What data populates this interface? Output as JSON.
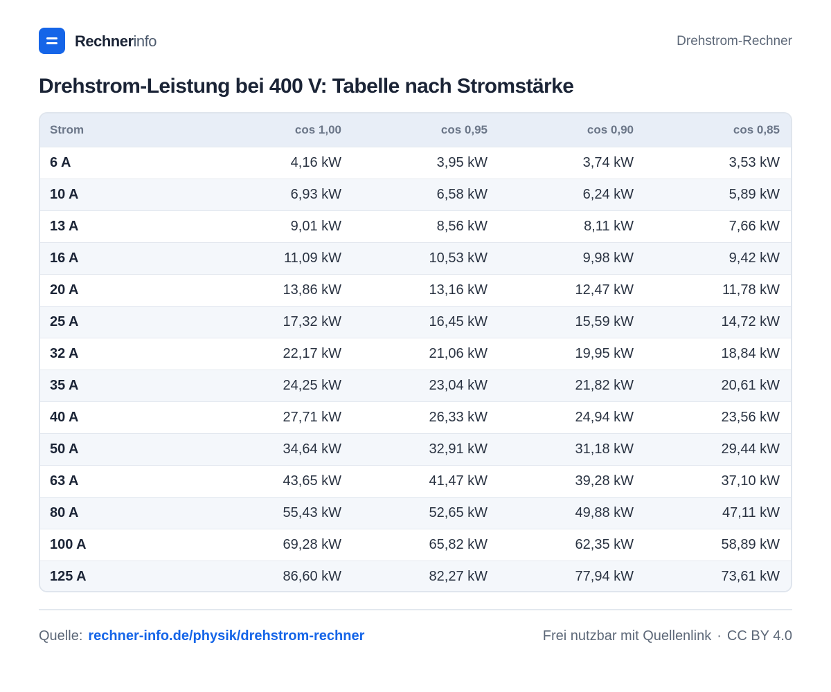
{
  "header": {
    "brand_bold": "Rechner",
    "brand_light": "info",
    "page_name": "Drehstrom-Rechner"
  },
  "title": "Drehstrom-Leistung bei 400 V: Tabelle nach Stromstärke",
  "table": {
    "columns": [
      "Strom",
      "cos  1,00",
      "cos  0,95",
      "cos  0,90",
      "cos  0,85"
    ],
    "rows": [
      [
        "6 A",
        "4,16 kW",
        "3,95 kW",
        "3,74 kW",
        "3,53 kW"
      ],
      [
        "10 A",
        "6,93 kW",
        "6,58 kW",
        "6,24 kW",
        "5,89 kW"
      ],
      [
        "13 A",
        "9,01 kW",
        "8,56 kW",
        "8,11 kW",
        "7,66 kW"
      ],
      [
        "16 A",
        "11,09 kW",
        "10,53 kW",
        "9,98 kW",
        "9,42 kW"
      ],
      [
        "20 A",
        "13,86 kW",
        "13,16 kW",
        "12,47 kW",
        "11,78 kW"
      ],
      [
        "25 A",
        "17,32 kW",
        "16,45 kW",
        "15,59 kW",
        "14,72 kW"
      ],
      [
        "32 A",
        "22,17 kW",
        "21,06 kW",
        "19,95 kW",
        "18,84 kW"
      ],
      [
        "35 A",
        "24,25 kW",
        "23,04 kW",
        "21,82 kW",
        "20,61 kW"
      ],
      [
        "40 A",
        "27,71 kW",
        "26,33 kW",
        "24,94 kW",
        "23,56 kW"
      ],
      [
        "50 A",
        "34,64 kW",
        "32,91 kW",
        "31,18 kW",
        "29,44 kW"
      ],
      [
        "63 A",
        "43,65 kW",
        "41,47 kW",
        "39,28 kW",
        "37,10 kW"
      ],
      [
        "80 A",
        "55,43 kW",
        "52,65 kW",
        "49,88 kW",
        "47,11 kW"
      ],
      [
        "100 A",
        "69,28 kW",
        "65,82 kW",
        "62,35 kW",
        "58,89 kW"
      ],
      [
        "125 A",
        "86,60 kW",
        "82,27 kW",
        "77,94 kW",
        "73,61 kW"
      ]
    ]
  },
  "footer": {
    "source_label": "Quelle:",
    "source_link": "rechner-info.de/physik/drehstrom-rechner",
    "license_text": "Frei nutzbar mit Quellenlink",
    "separator": "·",
    "license": "CC BY 4.0"
  },
  "colors": {
    "accent": "#1565e8",
    "header_row": "#e8eef7",
    "stripe_row": "#f4f7fb"
  },
  "icons": {
    "logo": "menu-lines-icon"
  }
}
